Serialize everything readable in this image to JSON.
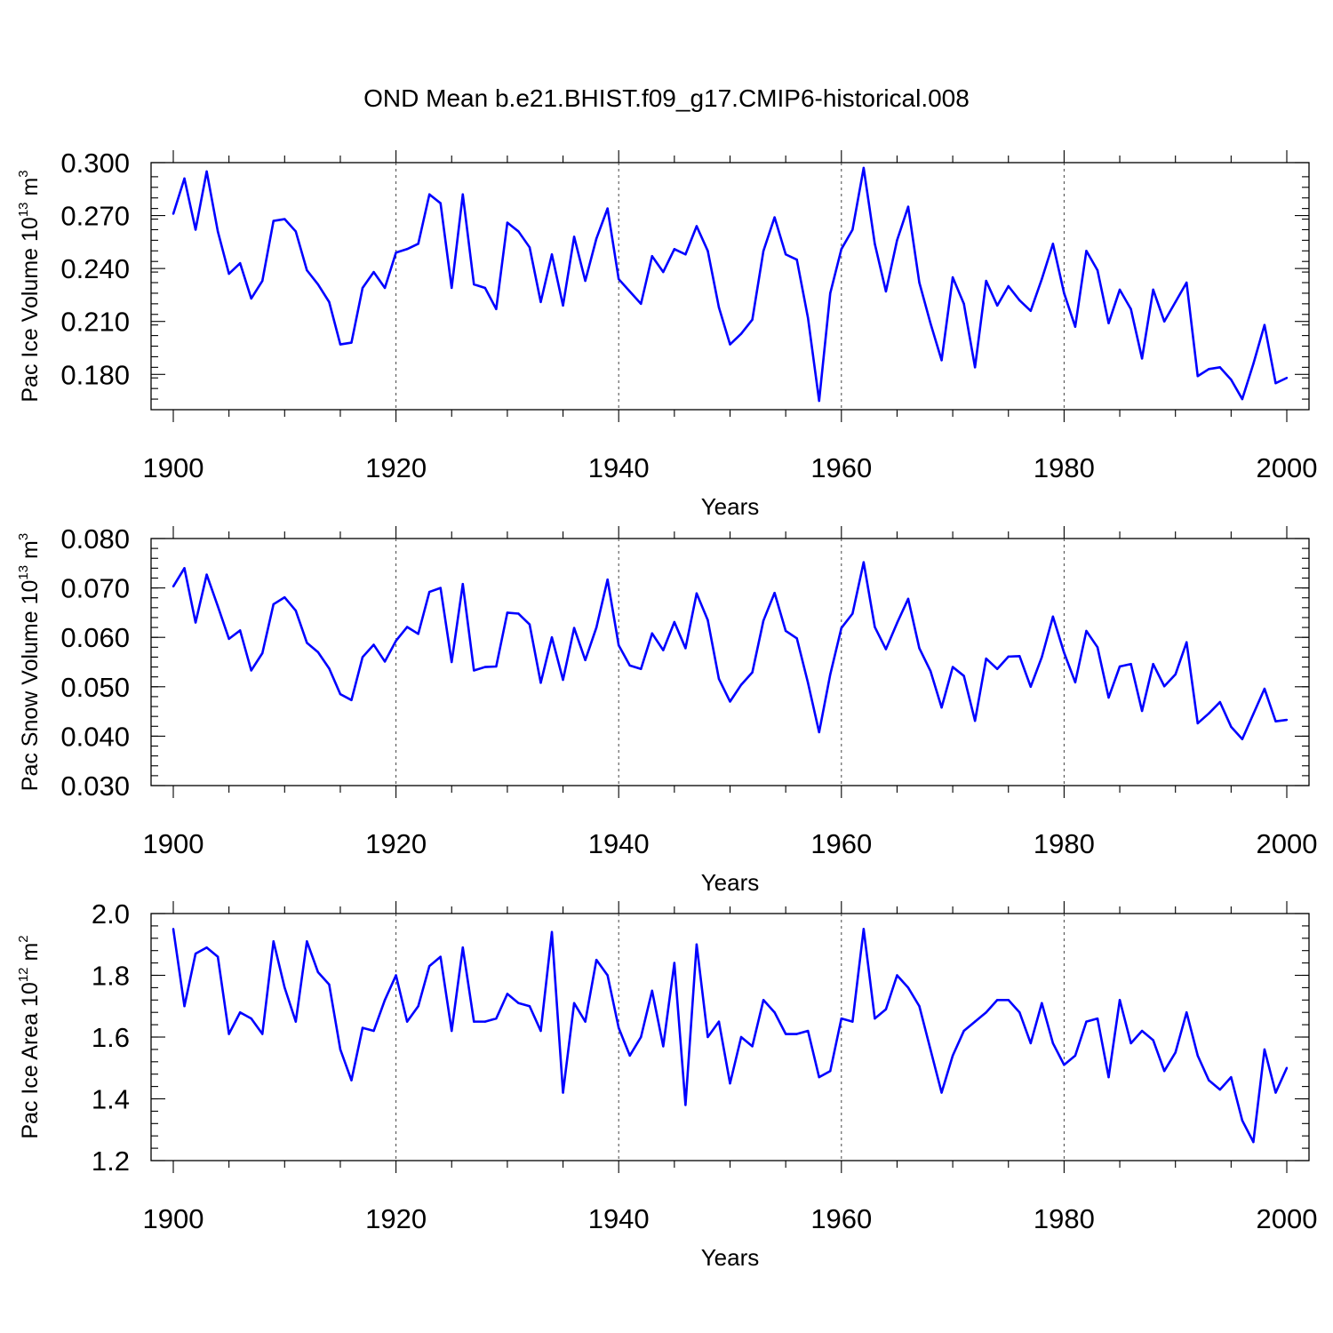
{
  "figure": {
    "title": "OND Mean b.e21.BHIST.f09_g17.CMIP6-historical.008",
    "line_color": "#0000ff"
  },
  "chart_data": [
    {
      "type": "line",
      "title": "",
      "xlabel": "Years",
      "ylabel": "Pac Ice Volume 10 m",
      "ylabel_sup_exp": "13",
      "ylabel_sup_unit": "3",
      "xlim": [
        1900,
        2000
      ],
      "ylim": [
        0.16,
        0.3
      ],
      "x_ticks": [
        1900,
        1920,
        1940,
        1960,
        1980,
        2000
      ],
      "x_tick_labels": [
        "1900",
        "1920",
        "1940",
        "1960",
        "1980",
        "2000"
      ],
      "y_ticks": [
        0.18,
        0.21,
        0.24,
        0.27,
        0.3
      ],
      "y_tick_labels": [
        "0.180",
        "0.210",
        "0.240",
        "0.270",
        "0.300"
      ],
      "y_minor_step": 0.006,
      "grid": "vertical dashed at labelled years",
      "series": [
        {
          "name": "Pac Ice Volume",
          "x_start": 1900,
          "values": [
            0.271,
            0.291,
            0.262,
            0.295,
            0.261,
            0.237,
            0.243,
            0.223,
            0.233,
            0.267,
            0.268,
            0.261,
            0.239,
            0.231,
            0.221,
            0.197,
            0.198,
            0.229,
            0.238,
            0.229,
            0.249,
            0.251,
            0.254,
            0.282,
            0.277,
            0.229,
            0.282,
            0.231,
            0.229,
            0.217,
            0.266,
            0.261,
            0.252,
            0.221,
            0.248,
            0.219,
            0.258,
            0.233,
            0.257,
            0.274,
            0.234,
            0.227,
            0.22,
            0.247,
            0.238,
            0.251,
            0.248,
            0.264,
            0.25,
            0.218,
            0.197,
            0.203,
            0.211,
            0.25,
            0.269,
            0.248,
            0.245,
            0.212,
            0.165,
            0.226,
            0.251,
            0.262,
            0.297,
            0.254,
            0.227,
            0.256,
            0.275,
            0.232,
            0.209,
            0.188,
            0.235,
            0.22,
            0.184,
            0.233,
            0.219,
            0.23,
            0.222,
            0.216,
            0.234,
            0.254,
            0.226,
            0.207,
            0.25,
            0.239,
            0.209,
            0.228,
            0.217,
            0.189,
            0.228,
            0.21,
            0.221,
            0.232,
            0.179,
            0.183,
            0.184,
            0.177,
            0.166,
            0.186,
            0.208,
            0.175,
            0.178
          ]
        }
      ]
    },
    {
      "type": "line",
      "title": "",
      "xlabel": "Years",
      "ylabel": "Pac Snow Volume 10 m",
      "ylabel_sup_exp": "13",
      "ylabel_sup_unit": "3",
      "xlim": [
        1900,
        2000
      ],
      "ylim": [
        0.03,
        0.08
      ],
      "x_ticks": [
        1900,
        1920,
        1940,
        1960,
        1980,
        2000
      ],
      "x_tick_labels": [
        "1900",
        "1920",
        "1940",
        "1960",
        "1980",
        "2000"
      ],
      "y_ticks": [
        0.03,
        0.04,
        0.05,
        0.06,
        0.07,
        0.08
      ],
      "y_tick_labels": [
        "0.030",
        "0.040",
        "0.050",
        "0.060",
        "0.070",
        "0.080"
      ],
      "y_minor_step": 0.002,
      "grid": "vertical dashed at labelled years",
      "series": [
        {
          "name": "Pac Snow Volume",
          "x_start": 1900,
          "values": [
            0.0703,
            0.074,
            0.063,
            0.0727,
            0.0663,
            0.0597,
            0.0614,
            0.0533,
            0.0568,
            0.0667,
            0.0681,
            0.0654,
            0.0589,
            0.057,
            0.0537,
            0.0485,
            0.0473,
            0.056,
            0.0585,
            0.0551,
            0.0593,
            0.0621,
            0.0607,
            0.0692,
            0.07,
            0.055,
            0.0708,
            0.0533,
            0.054,
            0.0541,
            0.065,
            0.0648,
            0.0626,
            0.0508,
            0.06,
            0.0514,
            0.0619,
            0.0554,
            0.062,
            0.0717,
            0.0584,
            0.0543,
            0.0536,
            0.0608,
            0.0574,
            0.0631,
            0.0578,
            0.0689,
            0.0635,
            0.0516,
            0.047,
            0.0504,
            0.0529,
            0.0634,
            0.069,
            0.0613,
            0.0598,
            0.0508,
            0.0408,
            0.0525,
            0.0619,
            0.0648,
            0.0752,
            0.0621,
            0.0576,
            0.0629,
            0.0678,
            0.0578,
            0.0532,
            0.0458,
            0.054,
            0.0522,
            0.0431,
            0.0557,
            0.0536,
            0.0561,
            0.0562,
            0.05,
            0.056,
            0.0642,
            0.0569,
            0.0509,
            0.0613,
            0.058,
            0.0478,
            0.0541,
            0.0546,
            0.0451,
            0.0546,
            0.0501,
            0.0525,
            0.059,
            0.0426,
            0.0446,
            0.0469,
            0.0419,
            0.0394,
            0.0445,
            0.0496,
            0.043,
            0.0433
          ]
        }
      ]
    },
    {
      "type": "line",
      "title": "",
      "xlabel": "Years",
      "ylabel": "Pac Ice Area 10 m",
      "ylabel_sup_exp": "12",
      "ylabel_sup_unit": "2",
      "xlim": [
        1900,
        2000
      ],
      "ylim": [
        1.2,
        2.0
      ],
      "x_ticks": [
        1900,
        1920,
        1940,
        1960,
        1980,
        2000
      ],
      "x_tick_labels": [
        "1900",
        "1920",
        "1940",
        "1960",
        "1980",
        "2000"
      ],
      "y_ticks": [
        1.2,
        1.4,
        1.6,
        1.8,
        2.0
      ],
      "y_tick_labels": [
        "1.2",
        "1.4",
        "1.6",
        "1.8",
        "2.0"
      ],
      "y_minor_step": 0.04,
      "grid": "vertical dashed at labelled years",
      "series": [
        {
          "name": "Pac Ice Area",
          "x_start": 1900,
          "values": [
            1.95,
            1.7,
            1.87,
            1.89,
            1.86,
            1.61,
            1.68,
            1.66,
            1.61,
            1.91,
            1.76,
            1.65,
            1.91,
            1.81,
            1.77,
            1.56,
            1.46,
            1.63,
            1.62,
            1.72,
            1.8,
            1.65,
            1.7,
            1.83,
            1.86,
            1.62,
            1.89,
            1.65,
            1.65,
            1.66,
            1.74,
            1.71,
            1.7,
            1.62,
            1.94,
            1.42,
            1.71,
            1.65,
            1.85,
            1.8,
            1.63,
            1.54,
            1.6,
            1.75,
            1.57,
            1.84,
            1.38,
            1.9,
            1.6,
            1.65,
            1.45,
            1.6,
            1.57,
            1.72,
            1.68,
            1.61,
            1.61,
            1.62,
            1.47,
            1.49,
            1.66,
            1.65,
            1.95,
            1.66,
            1.69,
            1.8,
            1.76,
            1.7,
            1.56,
            1.42,
            1.54,
            1.62,
            1.65,
            1.68,
            1.72,
            1.72,
            1.68,
            1.58,
            1.71,
            1.58,
            1.51,
            1.54,
            1.65,
            1.66,
            1.47,
            1.72,
            1.58,
            1.62,
            1.59,
            1.49,
            1.55,
            1.68,
            1.54,
            1.46,
            1.43,
            1.47,
            1.33,
            1.26,
            1.56,
            1.42,
            1.5
          ]
        }
      ]
    }
  ]
}
